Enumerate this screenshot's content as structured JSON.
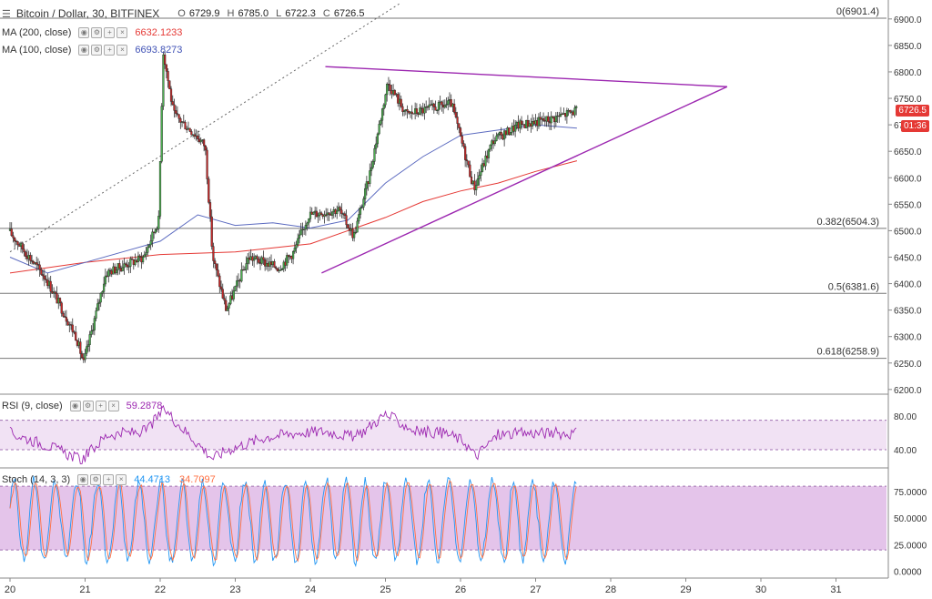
{
  "header": {
    "symbol": "Bitcoin / Dollar, 30, BITFINEX",
    "ohlc": [
      {
        "key": "O",
        "value": "6729.9"
      },
      {
        "key": "H",
        "value": "6785.0"
      },
      {
        "key": "L",
        "value": "6722.3"
      },
      {
        "key": "C",
        "value": "6726.5"
      }
    ],
    "ma200_label": "MA (200, close)",
    "ma200_value": "6632.1233",
    "ma100_label": "MA (100, close)",
    "ma100_value": "6693.8273"
  },
  "badges": {
    "price": "6726.5",
    "timer": "01:36"
  },
  "colors": {
    "up": "#4caf50",
    "down": "#c62828",
    "ma200": "#e53935",
    "ma100": "#5c6bc0",
    "triangle": "#9c27b0",
    "rsi": "#9c27b0",
    "stoch_k": "#2196f3",
    "stoch_d": "#ff7043",
    "band": "#e1bee7"
  },
  "chart_data": {
    "type": "candlestick",
    "x_ticks": [
      "20",
      "21",
      "22",
      "23",
      "24",
      "25",
      "26",
      "27",
      "28",
      "29",
      "30",
      "31"
    ],
    "y_ticks": [
      "6900.0",
      "6850.0",
      "6800.0",
      "6750.0",
      "6700.0",
      "6650.0",
      "6600.0",
      "6550.0",
      "6500.0",
      "6450.0",
      "6400.0",
      "6350.0",
      "6300.0",
      "6250.0",
      "6200.0"
    ],
    "ylim": [
      6188,
      6920
    ],
    "fib_levels": [
      {
        "label": "0(6901.4)",
        "value": 6901.4
      },
      {
        "label": "0.382(6504.3)",
        "value": 6504.3
      },
      {
        "label": "0.5(6381.6)",
        "value": 6381.6
      },
      {
        "label": "0.618(6258.9)",
        "value": 6258.9
      }
    ],
    "anchors": [
      [
        20.0,
        6500
      ],
      [
        20.5,
        6410
      ],
      [
        20.9,
        6300
      ],
      [
        21.0,
        6250
      ],
      [
        21.3,
        6420
      ],
      [
        21.8,
        6450
      ],
      [
        22.0,
        6520
      ],
      [
        22.06,
        6840
      ],
      [
        22.2,
        6720
      ],
      [
        22.5,
        6680
      ],
      [
        22.62,
        6660
      ],
      [
        22.72,
        6450
      ],
      [
        22.9,
        6350
      ],
      [
        23.2,
        6450
      ],
      [
        23.6,
        6430
      ],
      [
        23.8,
        6460
      ],
      [
        24.0,
        6530
      ],
      [
        24.4,
        6540
      ],
      [
        24.6,
        6490
      ],
      [
        24.8,
        6600
      ],
      [
        25.05,
        6780
      ],
      [
        25.3,
        6720
      ],
      [
        25.6,
        6730
      ],
      [
        25.9,
        6740
      ],
      [
        26.05,
        6660
      ],
      [
        26.2,
        6580
      ],
      [
        26.45,
        6670
      ],
      [
        26.8,
        6700
      ],
      [
        27.2,
        6710
      ],
      [
        27.55,
        6726.5
      ]
    ],
    "ma200_points": [
      [
        20.0,
        6420
      ],
      [
        21.0,
        6440
      ],
      [
        22.0,
        6455
      ],
      [
        23.0,
        6460
      ],
      [
        24.0,
        6475
      ],
      [
        24.5,
        6500
      ],
      [
        25.0,
        6525
      ],
      [
        25.5,
        6555
      ],
      [
        26.0,
        6575
      ],
      [
        26.5,
        6590
      ],
      [
        27.0,
        6612
      ],
      [
        27.55,
        6632.1
      ]
    ],
    "ma100_points": [
      [
        20.0,
        6450
      ],
      [
        20.5,
        6420
      ],
      [
        21.0,
        6440
      ],
      [
        21.5,
        6460
      ],
      [
        22.0,
        6480
      ],
      [
        22.5,
        6530
      ],
      [
        23.0,
        6510
      ],
      [
        23.5,
        6515
      ],
      [
        24.0,
        6505
      ],
      [
        24.5,
        6520
      ],
      [
        25.0,
        6590
      ],
      [
        25.5,
        6640
      ],
      [
        26.0,
        6680
      ],
      [
        26.5,
        6690
      ],
      [
        27.0,
        6700
      ],
      [
        27.55,
        6693.8
      ]
    ],
    "trendline_dotted": [
      [
        20.0,
        6460
      ],
      [
        25.2,
        6930
      ]
    ],
    "triangle_upper": [
      [
        24.2,
        6810
      ],
      [
        29.55,
        6772
      ]
    ],
    "triangle_lower": [
      [
        24.15,
        6420
      ],
      [
        29.55,
        6772
      ]
    ],
    "rsi": {
      "label": "RSI (9, close)",
      "value": "59.2878",
      "ticks": [
        "80.00",
        "40.00"
      ],
      "ylim": [
        15,
        95
      ],
      "band": [
        40,
        75
      ],
      "anchors": [
        [
          20.0,
          60
        ],
        [
          20.5,
          45
        ],
        [
          20.95,
          28
        ],
        [
          21.3,
          58
        ],
        [
          21.8,
          62
        ],
        [
          22.06,
          88
        ],
        [
          22.3,
          65
        ],
        [
          22.7,
          30
        ],
        [
          22.9,
          40
        ],
        [
          23.4,
          55
        ],
        [
          23.8,
          60
        ],
        [
          24.2,
          62
        ],
        [
          24.6,
          55
        ],
        [
          25.0,
          82
        ],
        [
          25.4,
          62
        ],
        [
          25.8,
          60
        ],
        [
          26.05,
          50
        ],
        [
          26.2,
          32
        ],
        [
          26.5,
          58
        ],
        [
          27.0,
          60
        ],
        [
          27.55,
          59.3
        ]
      ]
    },
    "stoch": {
      "label": "Stoch (14, 3, 3)",
      "k_value": "44.4713",
      "d_value": "34.7097",
      "ticks": [
        "75.0000",
        "50.0000",
        "25.0000",
        "0.0000"
      ],
      "ylim": [
        -5,
        95
      ],
      "band": [
        20,
        80
      ]
    }
  }
}
